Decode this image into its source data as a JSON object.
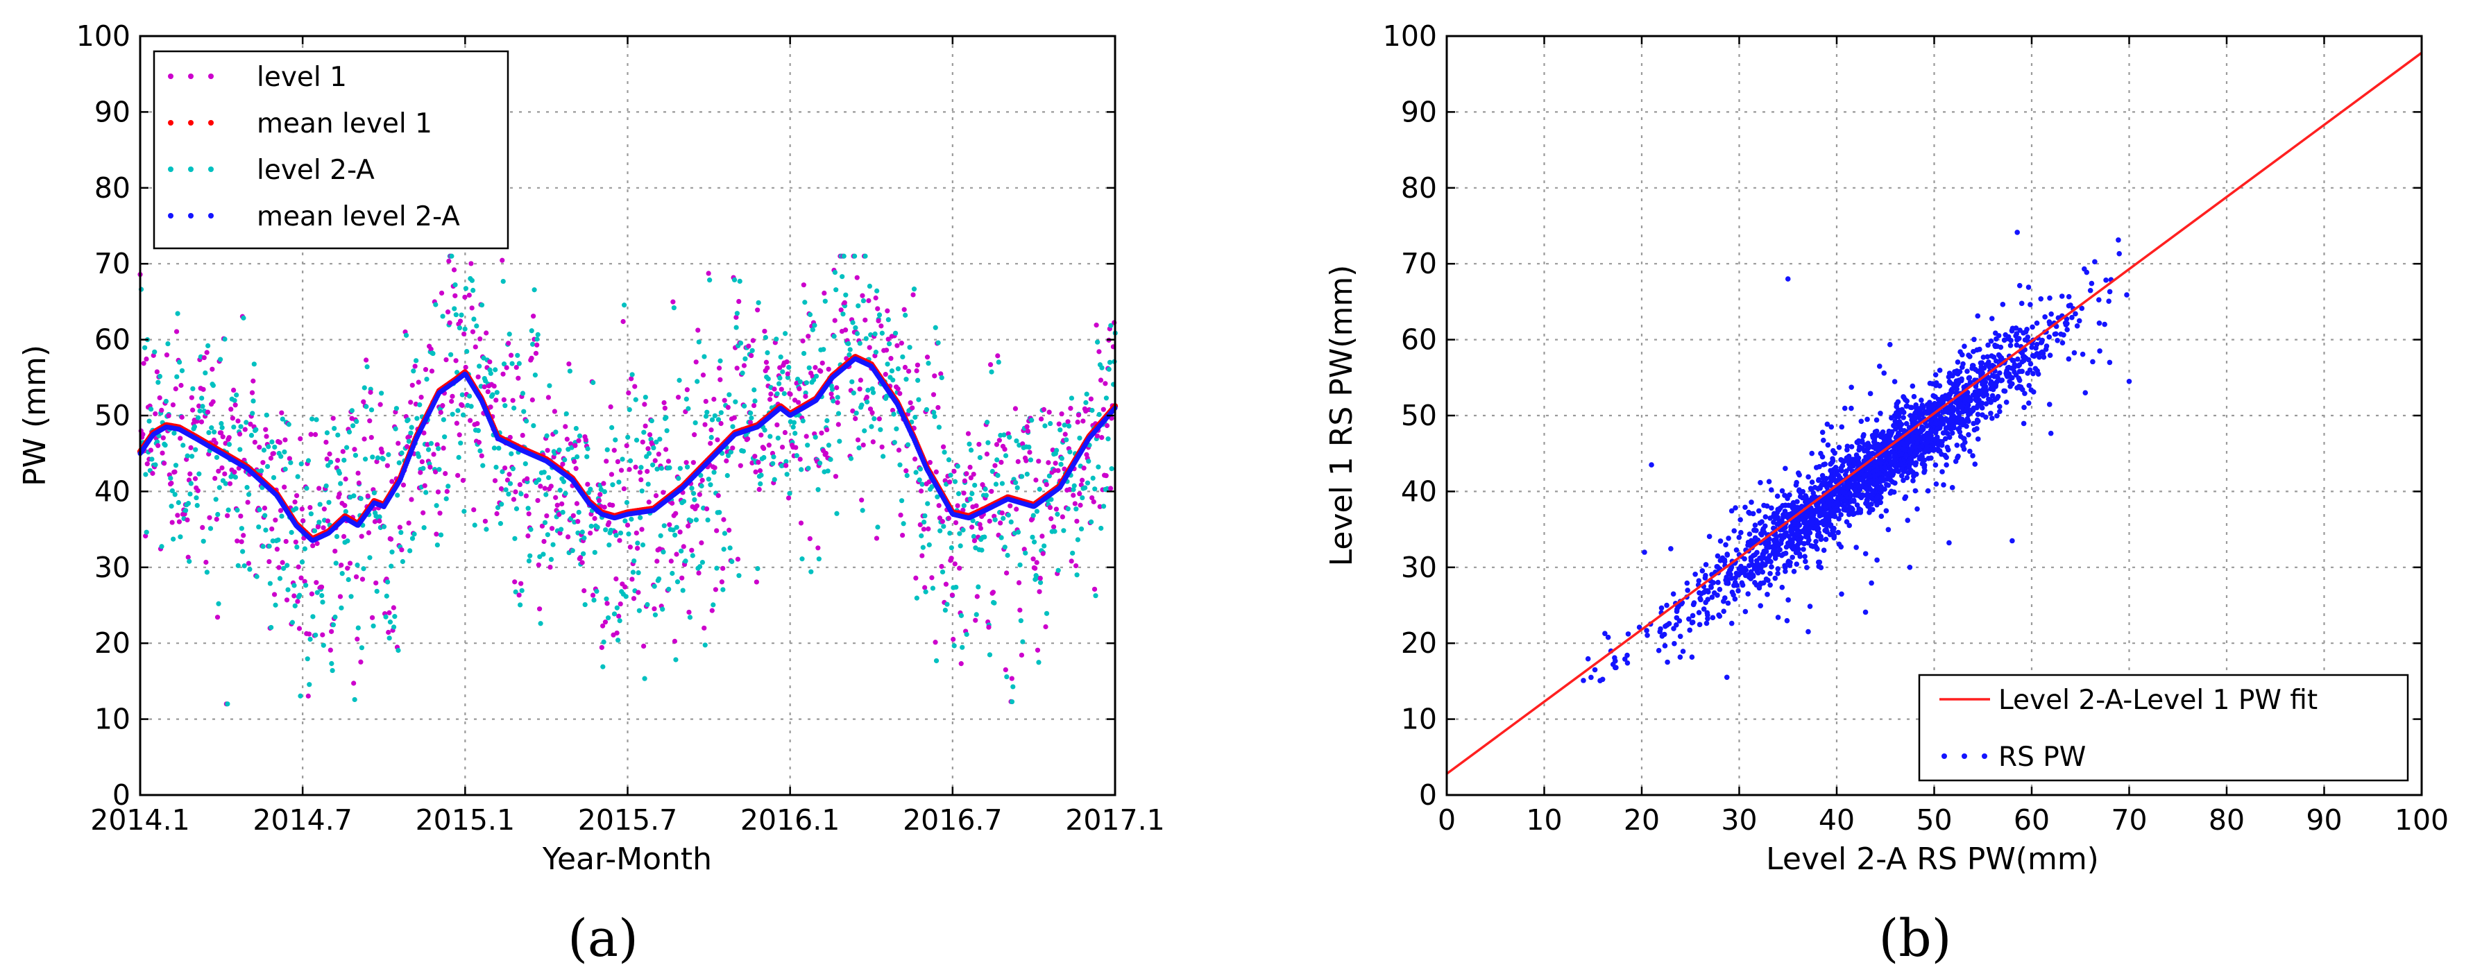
{
  "chart_data": [
    {
      "panel": "a",
      "type": "scatter",
      "caption": "(a)",
      "xlabel": "Year-Month",
      "ylabel": "PW (mm)",
      "xlim": [
        2014.0,
        2017.0
      ],
      "ylim": [
        0,
        100
      ],
      "grid": true,
      "legend_position": "top-left",
      "x_ticks": [
        {
          "v": 2014.0,
          "label": "2014.1"
        },
        {
          "v": 2014.5,
          "label": "2014.7"
        },
        {
          "v": 2015.0,
          "label": "2015.1"
        },
        {
          "v": 2015.5,
          "label": "2015.7"
        },
        {
          "v": 2016.0,
          "label": "2016.1"
        },
        {
          "v": 2016.5,
          "label": "2016.7"
        },
        {
          "v": 2017.0,
          "label": "2017.1"
        }
      ],
      "y_ticks": [
        {
          "v": 0,
          "label": "0"
        },
        {
          "v": 10,
          "label": "10"
        },
        {
          "v": 20,
          "label": "20"
        },
        {
          "v": 30,
          "label": "30"
        },
        {
          "v": 40,
          "label": "40"
        },
        {
          "v": 50,
          "label": "50"
        },
        {
          "v": 60,
          "label": "60"
        },
        {
          "v": 70,
          "label": "70"
        },
        {
          "v": 80,
          "label": "80"
        },
        {
          "v": 90,
          "label": "90"
        },
        {
          "v": 100,
          "label": "100"
        }
      ],
      "mean_curve": {
        "x": [
          2014.0,
          2014.04,
          2014.08,
          2014.12,
          2014.17,
          2014.25,
          2014.33,
          2014.42,
          2014.48,
          2014.53,
          2014.58,
          2014.63,
          2014.67,
          2014.72,
          2014.75,
          2014.8,
          2014.85,
          2014.92,
          2014.97,
          2015.0,
          2015.05,
          2015.1,
          2015.17,
          2015.25,
          2015.33,
          2015.38,
          2015.42,
          2015.46,
          2015.5,
          2015.58,
          2015.67,
          2015.75,
          2015.83,
          2015.9,
          2015.97,
          2016.0,
          2016.04,
          2016.08,
          2016.13,
          2016.2,
          2016.25,
          2016.29,
          2016.33,
          2016.38,
          2016.42,
          2016.5,
          2016.55,
          2016.6,
          2016.67,
          2016.75,
          2016.83,
          2016.92,
          2017.0
        ],
        "y": [
          45.0,
          47.5,
          48.5,
          48.2,
          47.0,
          45.0,
          43.0,
          39.5,
          35.5,
          33.5,
          34.5,
          36.5,
          35.5,
          38.5,
          38.0,
          41.5,
          47.0,
          53.0,
          54.5,
          55.5,
          52.0,
          47.0,
          45.5,
          44.0,
          41.5,
          38.5,
          37.0,
          36.5,
          37.0,
          37.5,
          40.5,
          44.0,
          47.5,
          48.5,
          51.0,
          50.0,
          51.0,
          52.0,
          55.0,
          57.5,
          56.5,
          54.0,
          51.5,
          47.0,
          43.0,
          37.0,
          36.5,
          37.5,
          39.0,
          38.0,
          40.5,
          47.0,
          51.0
        ]
      },
      "series": [
        {
          "name": "level 1",
          "color": "#cc00cc",
          "marker": "dot"
        },
        {
          "name": "mean level 1",
          "color": "#ff0000",
          "marker": "dot"
        },
        {
          "name": "level 2-A",
          "color": "#00c0c0",
          "marker": "dot"
        },
        {
          "name": "mean level 2-A",
          "color": "#1414ff",
          "marker": "dot"
        }
      ]
    },
    {
      "panel": "b",
      "type": "scatter",
      "caption": "(b)",
      "xlabel": "Level 2-A RS PW(mm)",
      "ylabel": "Level 1 RS PW(mm)",
      "xlim": [
        0,
        100
      ],
      "ylim": [
        0,
        100
      ],
      "grid": true,
      "legend_position": "bottom-right",
      "x_ticks": [
        {
          "v": 0,
          "label": "0"
        },
        {
          "v": 10,
          "label": "10"
        },
        {
          "v": 20,
          "label": "20"
        },
        {
          "v": 30,
          "label": "30"
        },
        {
          "v": 40,
          "label": "40"
        },
        {
          "v": 50,
          "label": "50"
        },
        {
          "v": 60,
          "label": "60"
        },
        {
          "v": 70,
          "label": "70"
        },
        {
          "v": 80,
          "label": "80"
        },
        {
          "v": 90,
          "label": "90"
        },
        {
          "v": 100,
          "label": "100"
        }
      ],
      "y_ticks": [
        {
          "v": 0,
          "label": "0"
        },
        {
          "v": 10,
          "label": "10"
        },
        {
          "v": 20,
          "label": "20"
        },
        {
          "v": 30,
          "label": "30"
        },
        {
          "v": 40,
          "label": "40"
        },
        {
          "v": 50,
          "label": "50"
        },
        {
          "v": 60,
          "label": "60"
        },
        {
          "v": 70,
          "label": "70"
        },
        {
          "v": 80,
          "label": "80"
        },
        {
          "v": 90,
          "label": "90"
        },
        {
          "v": 100,
          "label": "100"
        }
      ],
      "fit": {
        "name": "Level 2-A-Level 1 PW fit",
        "color": "#ff2020",
        "slope": 0.95,
        "intercept": 2.8
      },
      "scatter": {
        "name": "RS PW",
        "color": "#1414ff",
        "x_range": [
          13,
          70
        ],
        "approx_points": 2200
      },
      "notable_points": [
        {
          "x": 35,
          "y": 68
        },
        {
          "x": 14.8,
          "y": 15.5
        },
        {
          "x": 15.2,
          "y": 16.5
        },
        {
          "x": 65.5,
          "y": 53
        },
        {
          "x": 68,
          "y": 57
        },
        {
          "x": 70,
          "y": 54.5
        },
        {
          "x": 21,
          "y": 43.5
        },
        {
          "x": 47.5,
          "y": 30
        },
        {
          "x": 58,
          "y": 33.5
        }
      ]
    }
  ]
}
